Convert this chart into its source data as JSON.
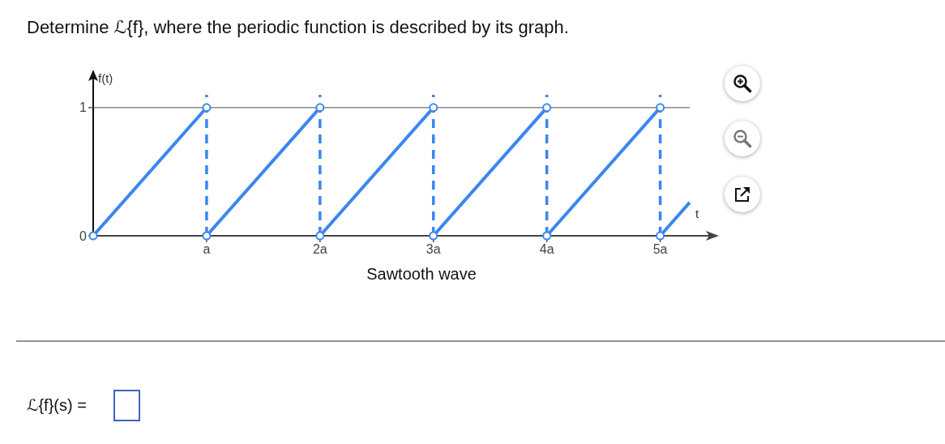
{
  "chart_data": {
    "type": "line",
    "title": "Determine ℒ{f}, where the periodic function is described by its graph.",
    "xlabel": "t",
    "ylabel": "f(t)",
    "annotations": [
      "Sawtooth wave",
      "ℒ{f}(s) ="
    ],
    "xlim": [
      0,
      5.26
    ],
    "ylim": [
      0,
      1.1
    ],
    "xticks": [
      {
        "value": 1,
        "label": "a"
      },
      {
        "value": 2,
        "label": "2a"
      },
      {
        "value": 3,
        "label": "3a"
      },
      {
        "value": 4,
        "label": "4a"
      },
      {
        "value": 5,
        "label": "5a"
      }
    ],
    "yticks": [
      0,
      1
    ],
    "series": [
      {
        "color": "#3b86f0",
        "x": [
          0,
          1
        ],
        "values": [
          0,
          1
        ]
      },
      {
        "color": "#3b86f0",
        "x": [
          1,
          2
        ],
        "values": [
          0,
          1
        ]
      },
      {
        "color": "#3b86f0",
        "x": [
          2,
          3
        ],
        "values": [
          0,
          1
        ]
      },
      {
        "color": "#3b86f0",
        "x": [
          3,
          4
        ],
        "values": [
          0,
          1
        ]
      },
      {
        "color": "#3b86f0",
        "x": [
          4,
          5
        ],
        "values": [
          0,
          1
        ]
      },
      {
        "color": "#3b86f0",
        "x": [
          5,
          5.26
        ],
        "values": [
          0,
          0.26
        ]
      },
      {
        "type": "scatter",
        "color": "#3b86f0",
        "marker": "circle",
        "x": [
          0,
          1,
          1,
          2,
          2,
          3,
          3,
          4,
          4,
          5,
          5
        ],
        "values": [
          0,
          1,
          0,
          1,
          0,
          1,
          0,
          1,
          0,
          1,
          0
        ]
      }
    ],
    "ref_lines": [
      {
        "axis": "y",
        "value": 1,
        "color": "#8a8a8a",
        "line_style": "solid"
      },
      {
        "axis": "x",
        "value": 1,
        "color": "#3b86f0",
        "line_style": "dashed"
      },
      {
        "axis": "x",
        "value": 2,
        "color": "#3b86f0",
        "line_style": "dashed"
      },
      {
        "axis": "x",
        "value": 3,
        "color": "#3b86f0",
        "line_style": "dashed"
      },
      {
        "axis": "x",
        "value": 4,
        "color": "#3b86f0",
        "line_style": "dashed"
      },
      {
        "axis": "x",
        "value": 5,
        "color": "#3b86f0",
        "line_style": "dashed"
      }
    ]
  }
}
